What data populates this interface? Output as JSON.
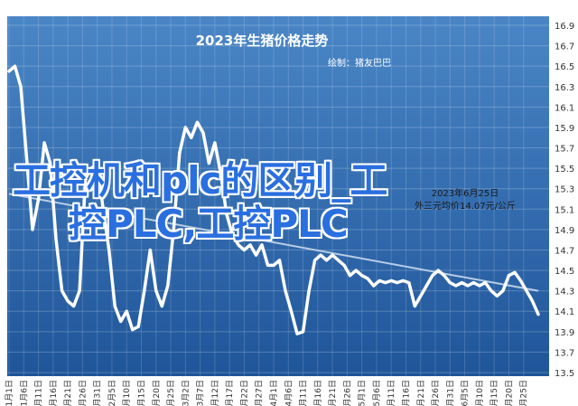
{
  "chart_data": {
    "type": "line",
    "title": "2023年生猪价格走势",
    "subtitle": "绘制：猪友巴巴",
    "xlabel": "",
    "ylabel": "",
    "ylim": [
      13.5,
      16.9
    ],
    "y_ticks": [
      "13.5",
      "13.7",
      "13.9",
      "14.1",
      "14.3",
      "14.5",
      "14.7",
      "14.9",
      "15.1",
      "15.3",
      "15.5",
      "15.7",
      "15.9",
      "16.1",
      "16.3",
      "16.5",
      "16.7",
      "16.9"
    ],
    "x_ticks": [
      "1月1日",
      "1月6日",
      "1月11日",
      "1月16日",
      "1月21日",
      "1月26日",
      "1月31日",
      "2月5日",
      "2月10日",
      "2月15日",
      "2月20日",
      "2月25日",
      "3月2日",
      "3月7日",
      "3月12日",
      "3月17日",
      "3月22日",
      "3月27日",
      "4月1日",
      "4月6日",
      "4月11日",
      "4月16日",
      "4月21日",
      "4月26日",
      "5月1日",
      "5月6日",
      "5月11日",
      "5月16日",
      "5月21日",
      "5月26日",
      "5月31日",
      "6月5日",
      "6月10日",
      "6月15日",
      "6月20日",
      "6月25日"
    ],
    "annotation": [
      "2023年6月25日",
      "外三元均价14.07元/公斤"
    ],
    "grid": true,
    "colors": {
      "background_top": "#4a86c6",
      "background_bottom": "#1f5599",
      "line": "#ffffff",
      "trend": "#b8cde6",
      "annotation": "#1a1a1a",
      "overlay_text": "#2a6fe0"
    },
    "series": [
      {
        "values": [
          [
            0,
            16.45
          ],
          [
            1,
            16.5
          ],
          [
            2,
            16.3
          ],
          [
            3,
            15.6
          ],
          [
            4,
            14.9
          ],
          [
            5,
            15.2
          ],
          [
            6,
            15.75
          ],
          [
            7,
            15.55
          ],
          [
            8,
            14.8
          ],
          [
            9,
            14.3
          ],
          [
            10,
            14.2
          ],
          [
            11,
            14.15
          ],
          [
            12,
            14.3
          ],
          [
            13,
            15.4
          ],
          [
            14,
            15.5
          ],
          [
            15,
            15.55
          ],
          [
            16,
            15.1
          ],
          [
            17,
            14.7
          ],
          [
            18,
            14.15
          ],
          [
            19,
            14.0
          ],
          [
            20,
            14.1
          ],
          [
            21,
            13.92
          ],
          [
            22,
            13.95
          ],
          [
            23,
            14.3
          ],
          [
            24,
            14.7
          ],
          [
            25,
            14.3
          ],
          [
            26,
            14.15
          ],
          [
            27,
            14.35
          ],
          [
            28,
            14.9
          ],
          [
            29,
            15.65
          ],
          [
            30,
            15.9
          ],
          [
            31,
            15.8
          ],
          [
            32,
            15.95
          ],
          [
            33,
            15.85
          ],
          [
            34,
            15.55
          ],
          [
            35,
            15.75
          ],
          [
            36,
            15.45
          ],
          [
            37,
            15.05
          ],
          [
            38,
            14.85
          ],
          [
            39,
            14.75
          ],
          [
            40,
            14.7
          ],
          [
            41,
            14.75
          ],
          [
            42,
            14.65
          ],
          [
            43,
            14.75
          ],
          [
            44,
            14.55
          ],
          [
            45,
            14.55
          ],
          [
            46,
            14.6
          ],
          [
            47,
            14.3
          ],
          [
            48,
            14.1
          ],
          [
            49,
            13.88
          ],
          [
            50,
            13.9
          ],
          [
            51,
            14.3
          ],
          [
            52,
            14.6
          ],
          [
            53,
            14.65
          ],
          [
            54,
            14.6
          ],
          [
            55,
            14.65
          ],
          [
            56,
            14.6
          ],
          [
            57,
            14.55
          ],
          [
            58,
            14.45
          ],
          [
            59,
            14.5
          ],
          [
            60,
            14.45
          ],
          [
            61,
            14.42
          ],
          [
            62,
            14.35
          ],
          [
            63,
            14.4
          ],
          [
            64,
            14.38
          ],
          [
            65,
            14.4
          ],
          [
            66,
            14.38
          ],
          [
            67,
            14.4
          ],
          [
            68,
            14.38
          ],
          [
            69,
            14.15
          ],
          [
            70,
            14.25
          ],
          [
            71,
            14.35
          ],
          [
            72,
            14.45
          ],
          [
            73,
            14.5
          ],
          [
            74,
            14.45
          ],
          [
            75,
            14.38
          ],
          [
            76,
            14.35
          ],
          [
            77,
            14.38
          ],
          [
            78,
            14.35
          ],
          [
            79,
            14.38
          ],
          [
            80,
            14.35
          ],
          [
            81,
            14.38
          ],
          [
            82,
            14.3
          ],
          [
            83,
            14.25
          ],
          [
            84,
            14.3
          ],
          [
            85,
            14.45
          ],
          [
            86,
            14.48
          ],
          [
            87,
            14.4
          ],
          [
            88,
            14.3
          ],
          [
            89,
            14.2
          ],
          [
            90,
            14.07
          ]
        ]
      }
    ],
    "trend": [
      [
        0,
        15.25
      ],
      [
        90,
        14.3
      ]
    ]
  },
  "overlay": {
    "line1": "工控机和plc的区别_工",
    "line2": "控PLC,工控PLC"
  }
}
